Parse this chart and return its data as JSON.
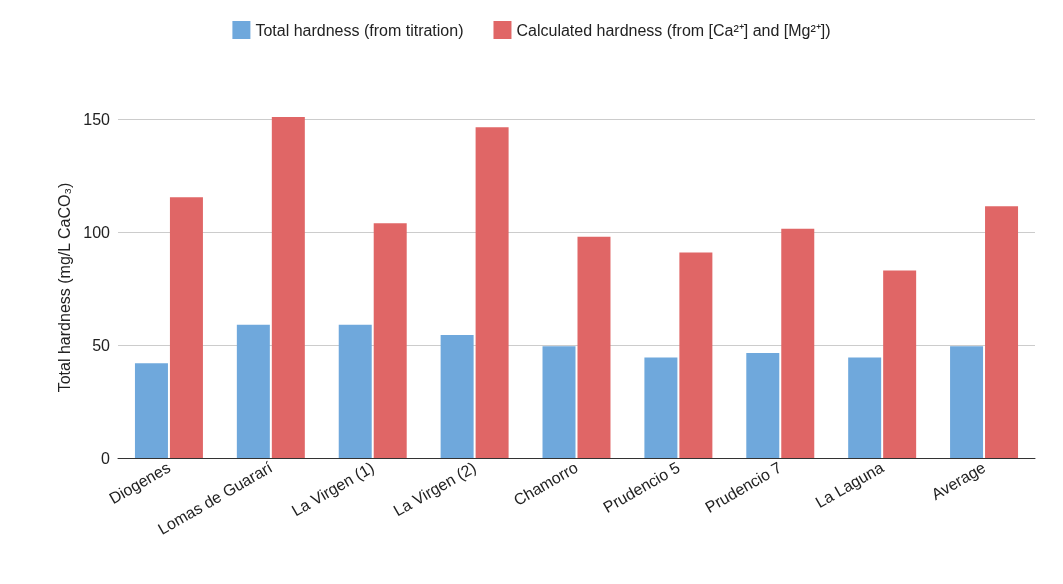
{
  "chart_data": {
    "type": "bar",
    "ylabel": "Total hardness (mg/L CaCO₃)",
    "categories": [
      "Diogenes",
      "Lomas de Guararí",
      "La Virgen (1)",
      "La Virgen (2)",
      "Chamorro",
      "Prudencio 5",
      "Prudencio 7",
      "La Laguna",
      "Average"
    ],
    "series": [
      {
        "name": "Total hardness (from titration)",
        "color": "#6fa8dc",
        "values": [
          42,
          59,
          59,
          54.5,
          49.5,
          44.5,
          46.5,
          44.5,
          49.5
        ]
      },
      {
        "name": "Calculated hardness (from [Ca²⁺] and [Mg²⁺])",
        "color": "#e06666",
        "values": [
          115.5,
          151,
          104,
          146.5,
          98,
          91,
          101.5,
          83,
          111.5
        ]
      }
    ],
    "ylim": [
      0,
      151
    ],
    "yticks": [
      0,
      50,
      100,
      150
    ],
    "grid": "y",
    "legend": "top"
  }
}
